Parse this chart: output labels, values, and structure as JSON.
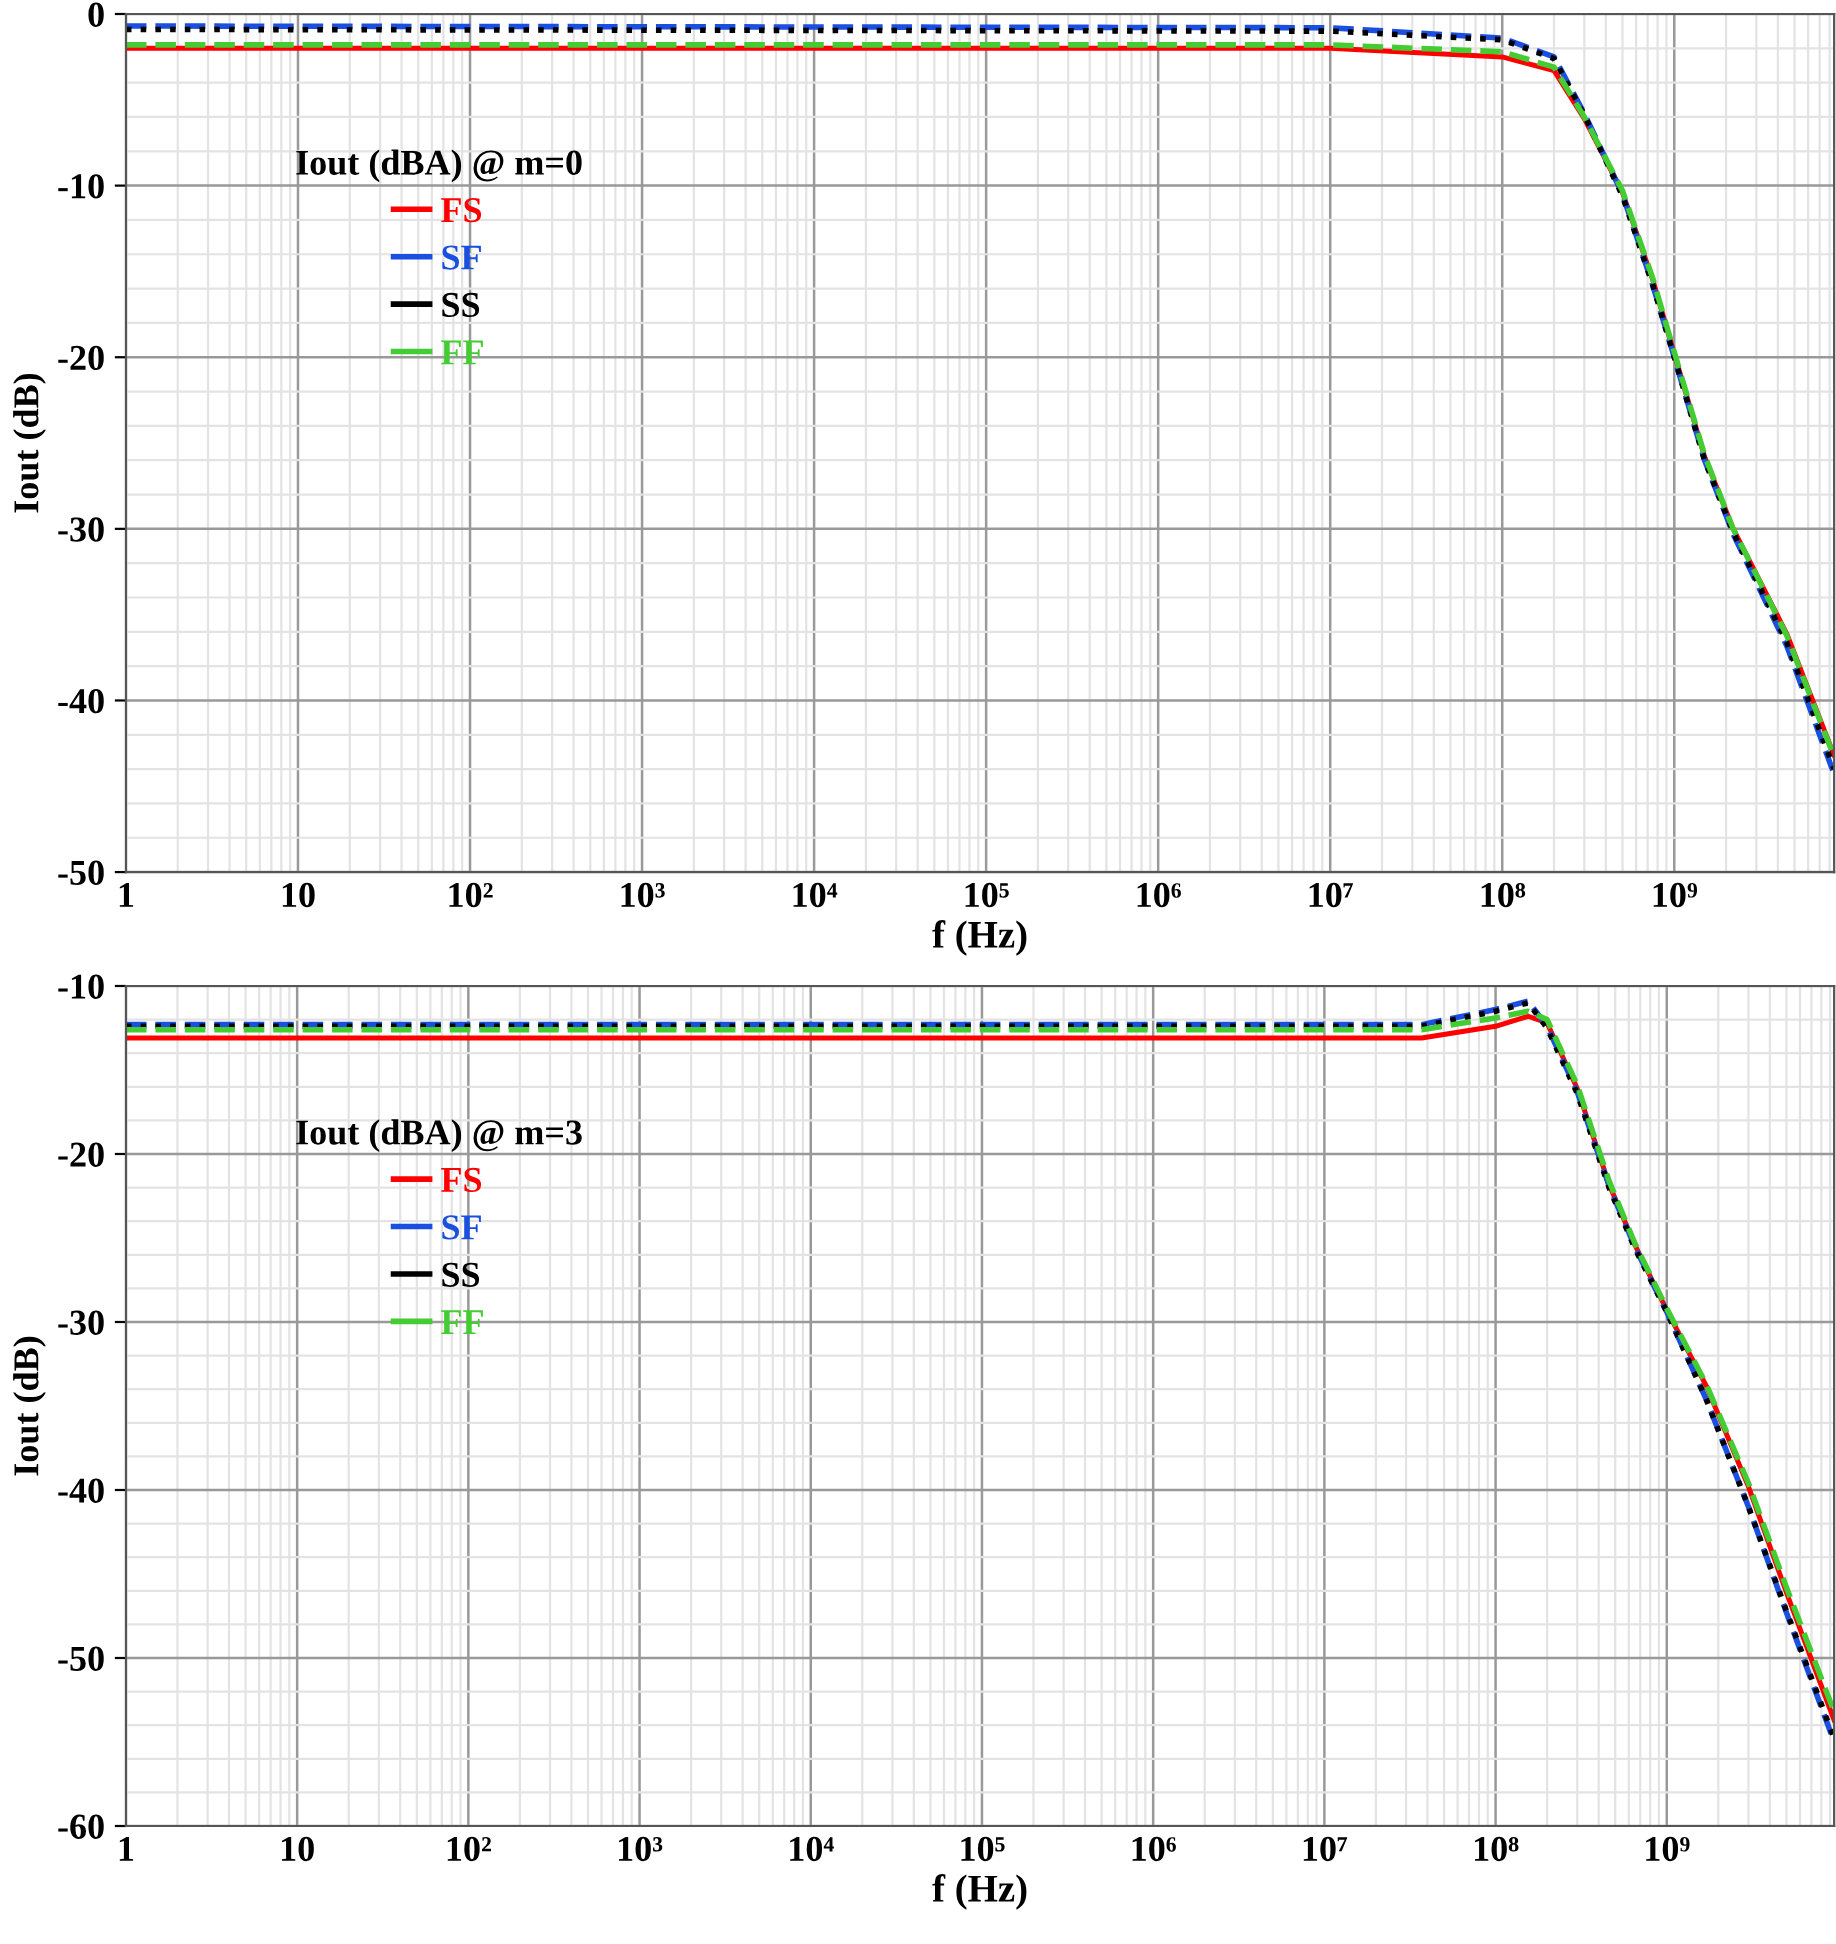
{
  "chart_data": [
    {
      "type": "line",
      "xlabel": "f (Hz)",
      "ylabel": "Iout (dB)",
      "legend_title": "Iout (dBA) @ m=0",
      "log": "x",
      "grid": true,
      "legend": "top left",
      "x": [
        1,
        10000000.0,
        100000000.0,
        200000000.0,
        300000000.0,
        500000000.0,
        750000000.0,
        1000000000.0,
        1500000000.0,
        2200000000.0,
        4500000000.0,
        8500000000.0
      ],
      "xlim": [
        1,
        8500000000.0
      ],
      "ylim": [
        -50,
        0
      ],
      "xticks": [
        1,
        10,
        {
          "value": 100,
          "label": "10²"
        },
        {
          "value": 1000,
          "label": "10³"
        },
        {
          "value": 10000,
          "label": "10⁴"
        },
        {
          "value": 100000,
          "label": "10⁵"
        },
        {
          "value": 1000000,
          "label": "10⁶"
        },
        {
          "value": 10000000,
          "label": "10⁷"
        },
        {
          "value": 100000000,
          "label": "10⁸"
        },
        {
          "value": 1000000000,
          "label": "10⁹"
        }
      ],
      "yticks": [
        0,
        -10,
        -20,
        -30,
        -40,
        -50
      ],
      "series": [
        {
          "name": "FS",
          "color": "#ff0000",
          "line_style": "solid",
          "values": [
            -2.0,
            -2.0,
            -2.5,
            -3.3,
            -6.1,
            -10.4,
            -15.5,
            -19.8,
            -25.8,
            -30.0,
            -36.1,
            -43.2
          ]
        },
        {
          "name": "SF",
          "color": "#1a4fe0",
          "line_style": "dashed",
          "values": [
            -0.7,
            -0.8,
            -1.4,
            -2.5,
            -5.8,
            -10.5,
            -15.8,
            -20.0,
            -26.0,
            -30.3,
            -36.8,
            -44.3
          ]
        },
        {
          "name": "SS",
          "color": "#000000",
          "line_style": "dotted",
          "values": [
            -0.9,
            -1.0,
            -1.5,
            -2.6,
            -5.9,
            -10.6,
            -15.8,
            -20.0,
            -26.0,
            -30.2,
            -36.6,
            -44.0
          ]
        },
        {
          "name": "FF",
          "color": "#44cc33",
          "line_style": "dashed",
          "values": [
            -1.8,
            -1.8,
            -2.2,
            -3.1,
            -6.0,
            -10.3,
            -15.4,
            -19.7,
            -25.7,
            -30.0,
            -36.2,
            -43.3
          ]
        }
      ]
    },
    {
      "type": "line",
      "xlabel": "f (Hz)",
      "ylabel": "Iout (dB)",
      "legend_title": "Iout (dBA) @ m=3",
      "log": "x",
      "grid": true,
      "legend": "top left",
      "x": [
        1,
        10000000.0,
        37000000.0,
        100000000.0,
        155000000.0,
        200000000.0,
        300000000.0,
        460000000.0,
        650000000.0,
        1000000000.0,
        1700000000.0,
        3000000000.0,
        5000000000.0,
        9500000000.0
      ],
      "xlim": [
        1,
        9500000000.0
      ],
      "ylim": [
        -60,
        -10
      ],
      "xticks": [
        1,
        10,
        {
          "value": 100,
          "label": "10²"
        },
        {
          "value": 1000,
          "label": "10³"
        },
        {
          "value": 10000,
          "label": "10⁴"
        },
        {
          "value": 100000,
          "label": "10⁵"
        },
        {
          "value": 1000000,
          "label": "10⁶"
        },
        {
          "value": 10000000,
          "label": "10⁷"
        },
        {
          "value": 100000000,
          "label": "10⁸"
        },
        {
          "value": 1000000000,
          "label": "10⁹"
        }
      ],
      "yticks": [
        -10,
        -20,
        -30,
        -40,
        -50,
        -60
      ],
      "series": [
        {
          "name": "FS",
          "color": "#ff0000",
          "line_style": "solid",
          "values": [
            -13.1,
            -13.1,
            -13.1,
            -12.4,
            -11.8,
            -12.2,
            -16.1,
            -21.8,
            -25.4,
            -29.3,
            -33.8,
            -39.8,
            -46.1,
            -53.7
          ]
        },
        {
          "name": "SF",
          "color": "#1a4fe0",
          "line_style": "dashed",
          "values": [
            -12.3,
            -12.3,
            -12.3,
            -11.4,
            -10.9,
            -12.4,
            -16.3,
            -21.9,
            -25.5,
            -29.4,
            -34.6,
            -41.0,
            -47.3,
            -55.0
          ]
        },
        {
          "name": "SS",
          "color": "#000000",
          "line_style": "dotted",
          "values": [
            -12.4,
            -12.4,
            -12.4,
            -11.5,
            -11.0,
            -12.5,
            -16.4,
            -22.0,
            -25.6,
            -29.4,
            -34.6,
            -41.0,
            -47.2,
            -54.8
          ]
        },
        {
          "name": "FF",
          "color": "#44cc33",
          "line_style": "dashed",
          "values": [
            -12.6,
            -12.6,
            -12.6,
            -11.9,
            -11.5,
            -12.0,
            -15.9,
            -21.6,
            -25.3,
            -29.2,
            -33.7,
            -39.6,
            -45.8,
            -53.2
          ]
        }
      ]
    }
  ]
}
